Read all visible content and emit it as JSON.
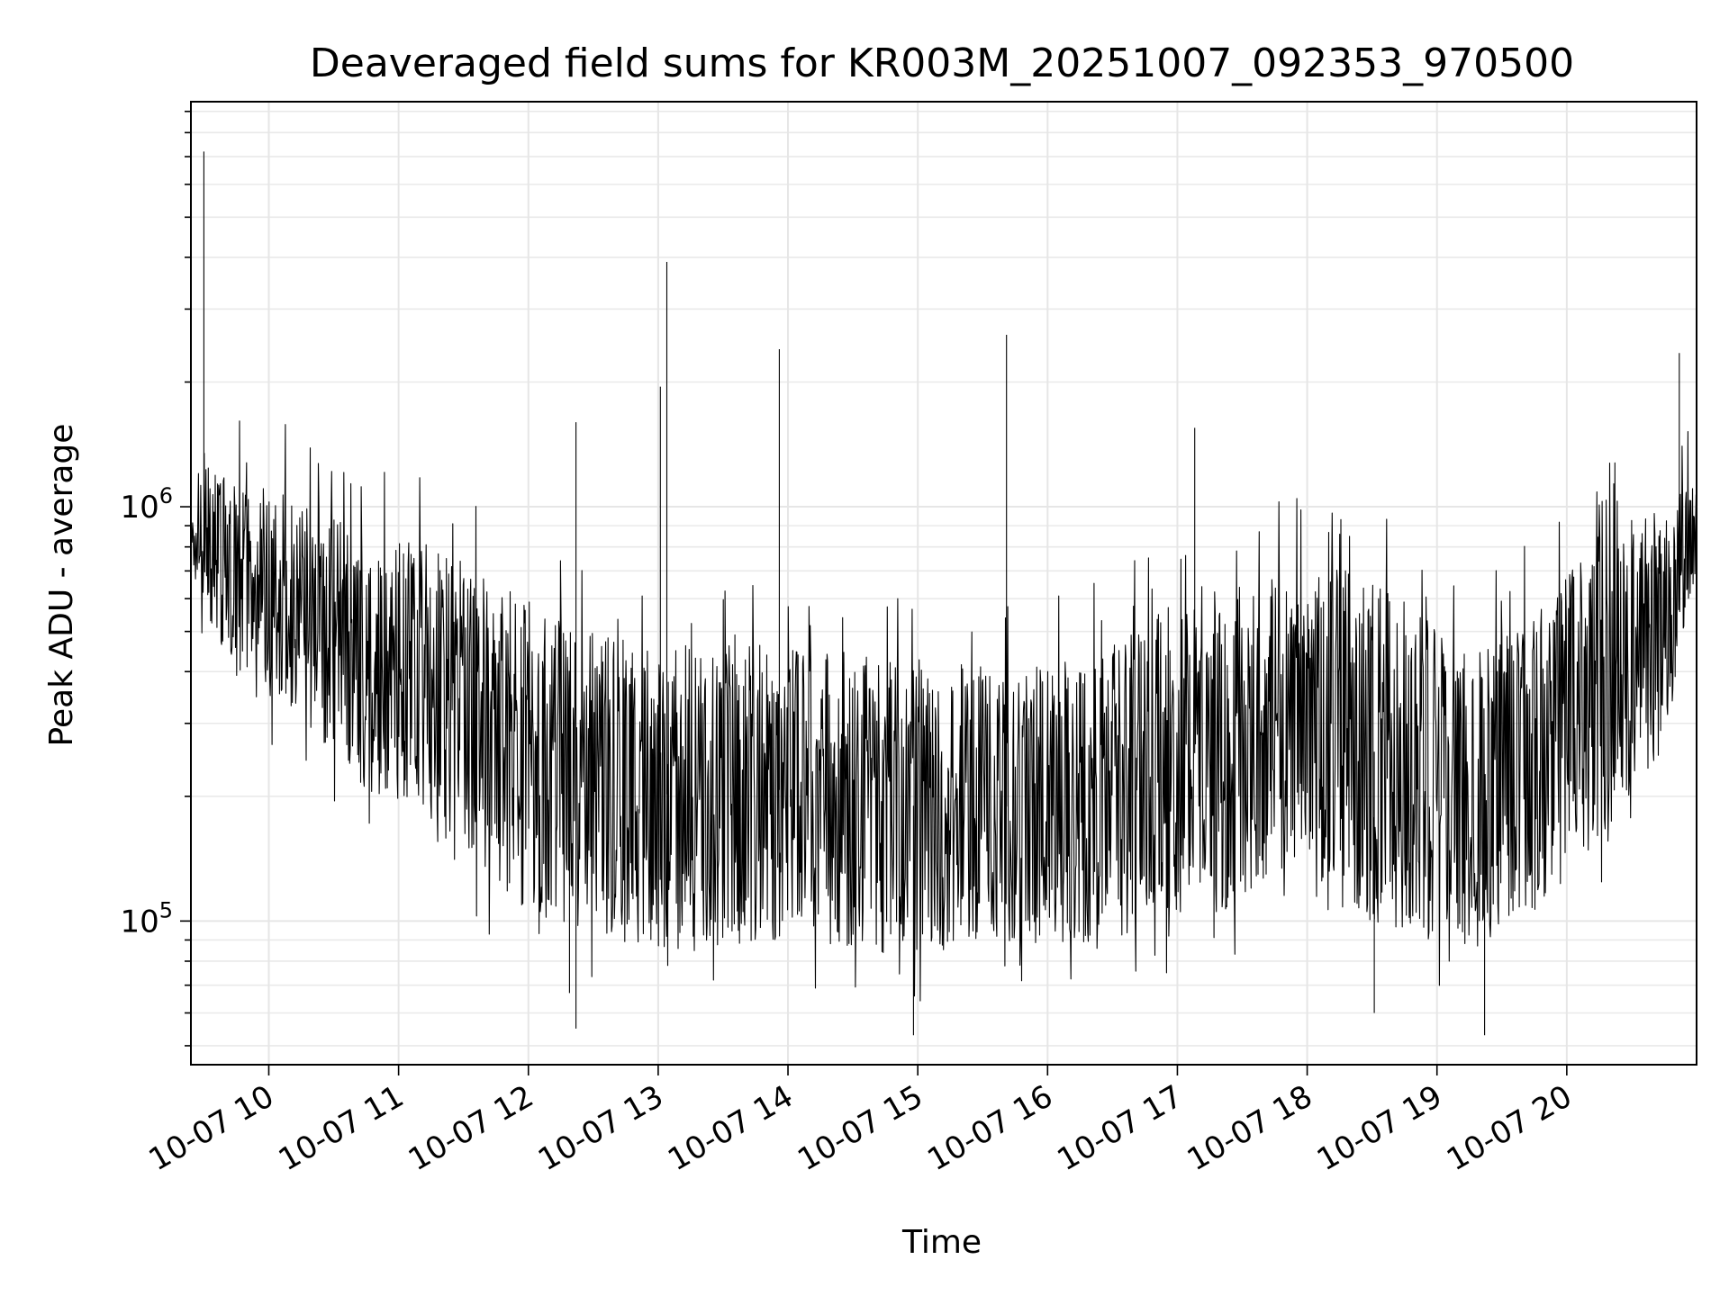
{
  "chart_data": {
    "type": "line",
    "title": "Deaveraged field sums for KR003M_20251007_092353_970500",
    "xlabel": "Time",
    "ylabel": "Peak ADU - average",
    "x_axis": {
      "kind": "datetime",
      "range": [
        "2025-10-07T09:24:00",
        "2025-10-07T21:00:00"
      ],
      "ticks": [
        {
          "value": "2025-10-07T10:00:00",
          "label": "10-07 10"
        },
        {
          "value": "2025-10-07T11:00:00",
          "label": "10-07 11"
        },
        {
          "value": "2025-10-07T12:00:00",
          "label": "10-07 12"
        },
        {
          "value": "2025-10-07T13:00:00",
          "label": "10-07 13"
        },
        {
          "value": "2025-10-07T14:00:00",
          "label": "10-07 14"
        },
        {
          "value": "2025-10-07T15:00:00",
          "label": "10-07 15"
        },
        {
          "value": "2025-10-07T16:00:00",
          "label": "10-07 16"
        },
        {
          "value": "2025-10-07T17:00:00",
          "label": "10-07 17"
        },
        {
          "value": "2025-10-07T18:00:00",
          "label": "10-07 18"
        },
        {
          "value": "2025-10-07T19:00:00",
          "label": "10-07 19"
        },
        {
          "value": "2025-10-07T20:00:00",
          "label": "10-07 20"
        }
      ],
      "tick_label_rotation_deg": 30
    },
    "y_axis": {
      "scale": "log",
      "range": [
        45000,
        9500000
      ],
      "major_ticks": [
        {
          "value": 100000,
          "base": "10",
          "exponent": "5"
        },
        {
          "value": 1000000,
          "base": "10",
          "exponent": "6"
        }
      ]
    },
    "grid": true,
    "line_color": "#000000",
    "envelope": [
      {
        "t": "2025-10-07T09:24:00",
        "lo": 650000,
        "hi": 1600000
      },
      {
        "t": "2025-10-07T09:45:00",
        "lo": 380000,
        "hi": 1200000
      },
      {
        "t": "2025-10-07T10:15:00",
        "lo": 300000,
        "hi": 1100000
      },
      {
        "t": "2025-10-07T10:45:00",
        "lo": 200000,
        "hi": 900000
      },
      {
        "t": "2025-10-07T11:15:00",
        "lo": 150000,
        "hi": 850000
      },
      {
        "t": "2025-10-07T11:45:00",
        "lo": 110000,
        "hi": 700000
      },
      {
        "t": "2025-10-07T12:15:00",
        "lo": 90000,
        "hi": 550000
      },
      {
        "t": "2025-10-07T12:45:00",
        "lo": 85000,
        "hi": 500000
      },
      {
        "t": "2025-10-07T13:15:00",
        "lo": 80000,
        "hi": 500000
      },
      {
        "t": "2025-10-07T13:45:00",
        "lo": 85000,
        "hi": 520000
      },
      {
        "t": "2025-10-07T14:15:00",
        "lo": 85000,
        "hi": 480000
      },
      {
        "t": "2025-10-07T14:45:00",
        "lo": 80000,
        "hi": 450000
      },
      {
        "t": "2025-10-07T15:15:00",
        "lo": 80000,
        "hi": 450000
      },
      {
        "t": "2025-10-07T15:45:00",
        "lo": 85000,
        "hi": 420000
      },
      {
        "t": "2025-10-07T16:15:00",
        "lo": 85000,
        "hi": 450000
      },
      {
        "t": "2025-10-07T16:45:00",
        "lo": 90000,
        "hi": 550000
      },
      {
        "t": "2025-10-07T17:15:00",
        "lo": 100000,
        "hi": 700000
      },
      {
        "t": "2025-10-07T17:45:00",
        "lo": 100000,
        "hi": 750000
      },
      {
        "t": "2025-10-07T18:15:00",
        "lo": 100000,
        "hi": 750000
      },
      {
        "t": "2025-10-07T18:45:00",
        "lo": 90000,
        "hi": 650000
      },
      {
        "t": "2025-10-07T19:15:00",
        "lo": 80000,
        "hi": 450000
      },
      {
        "t": "2025-10-07T19:45:00",
        "lo": 100000,
        "hi": 600000
      },
      {
        "t": "2025-10-07T20:15:00",
        "lo": 150000,
        "hi": 900000
      },
      {
        "t": "2025-10-07T20:45:00",
        "lo": 250000,
        "hi": 1100000
      },
      {
        "t": "2025-10-07T21:00:00",
        "lo": 700000,
        "hi": 1150000
      }
    ],
    "spikes": [
      {
        "t": "2025-10-07T09:30:00",
        "y": 7200000
      },
      {
        "t": "2025-10-07T12:22:00",
        "y": 1600000
      },
      {
        "t": "2025-10-07T13:01:00",
        "y": 1950000
      },
      {
        "t": "2025-10-07T13:04:00",
        "y": 3900000
      },
      {
        "t": "2025-10-07T13:56:00",
        "y": 2400000
      },
      {
        "t": "2025-10-07T15:41:00",
        "y": 2600000
      },
      {
        "t": "2025-10-07T17:08:00",
        "y": 1550000
      },
      {
        "t": "2025-10-07T20:52:00",
        "y": 2350000
      },
      {
        "t": "2025-10-07T12:19:00",
        "y": 67000
      },
      {
        "t": "2025-10-07T12:22:00",
        "y": 55000
      },
      {
        "t": "2025-10-07T14:58:00",
        "y": 53000
      },
      {
        "t": "2025-10-07T18:31:00",
        "y": 60000
      },
      {
        "t": "2025-10-07T19:22:00",
        "y": 53000
      }
    ]
  }
}
